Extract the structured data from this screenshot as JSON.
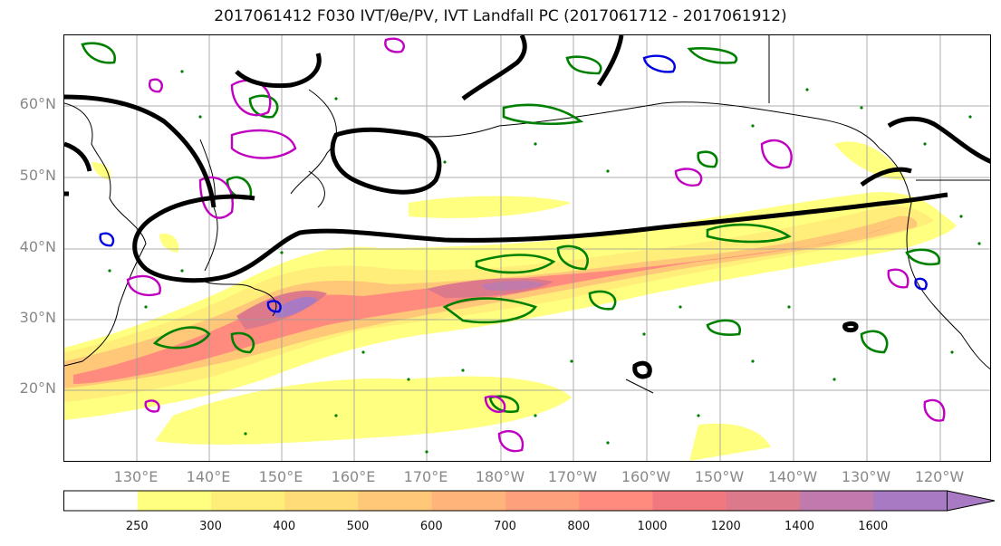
{
  "title": "2017061412 F030 IVT/θe/PV, IVT Landfall PC (2017061712 - 2017061912)",
  "lat_labels": [
    "60°N",
    "50°N",
    "40°N",
    "30°N",
    "20°N"
  ],
  "lon_labels": [
    "130°E",
    "140°E",
    "150°E",
    "160°E",
    "170°E",
    "180°W",
    "170°W",
    "160°W",
    "150°W",
    "140°W",
    "130°W",
    "120°W"
  ],
  "colorbar": {
    "labels": [
      "250",
      "300",
      "400",
      "500",
      "600",
      "700",
      "800",
      "1000",
      "1200",
      "1400",
      "1600"
    ],
    "colors": [
      "#ffffff",
      "#ffff80",
      "#ffef7a",
      "#ffdc78",
      "#ffc878",
      "#ffb47a",
      "#ffa07c",
      "#ff8a7e",
      "#f0787e",
      "#dc7a8c",
      "#c07aac",
      "#a87ac4"
    ]
  },
  "colors": {
    "ivt_contour": "#000000",
    "theta_e": "#008000",
    "pv_magenta": "#c000c0",
    "pv_blue": "#0000e0",
    "coastline": "#000000"
  }
}
